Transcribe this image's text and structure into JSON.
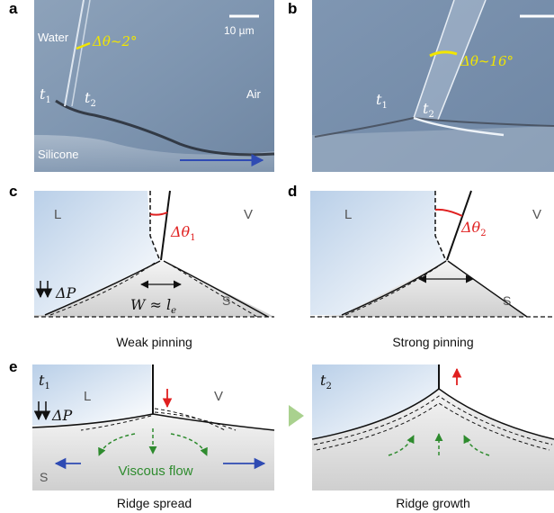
{
  "panels": {
    "a": {
      "letter": "a",
      "water": "Water",
      "air": "Air",
      "silicone": "Silicone",
      "scale": "10 µm",
      "angle": "Δθ~2°",
      "t1": "t",
      "t1_sub": "1",
      "t2": "t",
      "t2_sub": "2"
    },
    "b": {
      "letter": "b",
      "angle": "Δθ~16°",
      "t1": "t",
      "t1_sub": "1",
      "t2": "t",
      "t2_sub": "2"
    },
    "c": {
      "letter": "c",
      "liquid": "L",
      "vapor": "V",
      "solid": "S",
      "angle": "Δθ",
      "angle_sub": "1",
      "pressure": "ΔP",
      "width_eq": "W ≈ l",
      "width_sub": "e",
      "caption": "Weak pinning"
    },
    "d": {
      "letter": "d",
      "liquid": "L",
      "vapor": "V",
      "solid": "S",
      "angle": "Δθ",
      "angle_sub": "2",
      "caption": "Strong pinning"
    },
    "e": {
      "letter": "e",
      "t1": "t",
      "t1_sub": "1",
      "liquid": "L",
      "vapor": "V",
      "solid": "S",
      "pressure": "ΔP",
      "flow": "Viscous flow",
      "caption": "Ridge spread"
    },
    "f": {
      "t2": "t",
      "t2_sub": "2",
      "caption": "Ridge growth"
    }
  },
  "colors": {
    "yellow": "#f2e600",
    "red": "#e02020",
    "green": "#2e8b2e",
    "blue": "#2f4bb3",
    "arrow_green": "#a9d18e"
  }
}
